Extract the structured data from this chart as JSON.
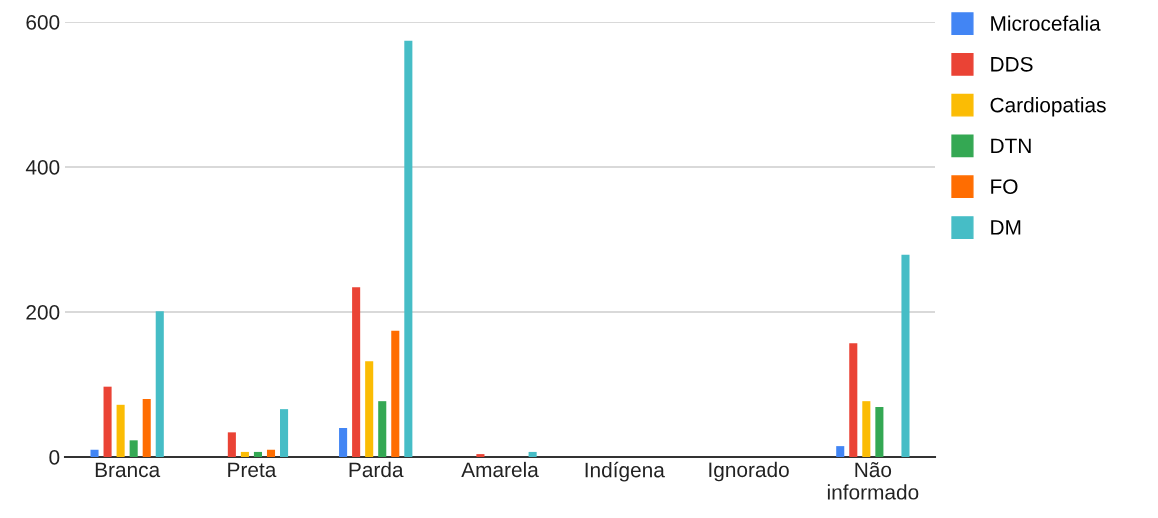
{
  "chart_data": {
    "type": "bar",
    "categories": [
      "Branca",
      "Preta",
      "Parda",
      "Amarela",
      "Indígena",
      "Ignorado",
      "Não informado"
    ],
    "series": [
      {
        "name": "Microcefalia",
        "color": "#4285f4",
        "values": [
          10,
          0,
          40,
          0,
          0,
          0,
          15
        ]
      },
      {
        "name": "DDS",
        "color": "#ea4335",
        "values": [
          97,
          34,
          234,
          4,
          0,
          0,
          157
        ]
      },
      {
        "name": "Cardiopatias",
        "color": "#fbbc04",
        "values": [
          72,
          7,
          132,
          0,
          0,
          0,
          77
        ]
      },
      {
        "name": "DTN",
        "color": "#34a853",
        "values": [
          23,
          7,
          77,
          0,
          0,
          0,
          69
        ]
      },
      {
        "name": "FO",
        "color": "#ff6d01",
        "values": [
          80,
          10,
          174,
          0,
          0,
          0,
          0
        ]
      },
      {
        "name": "DM",
        "color": "#46bdc6",
        "values": [
          201,
          66,
          574,
          7,
          0,
          0,
          279
        ]
      }
    ],
    "ylim": [
      0,
      600
    ],
    "yticks": [
      0,
      200,
      400,
      600
    ],
    "grid": "y",
    "legend": "top right"
  }
}
